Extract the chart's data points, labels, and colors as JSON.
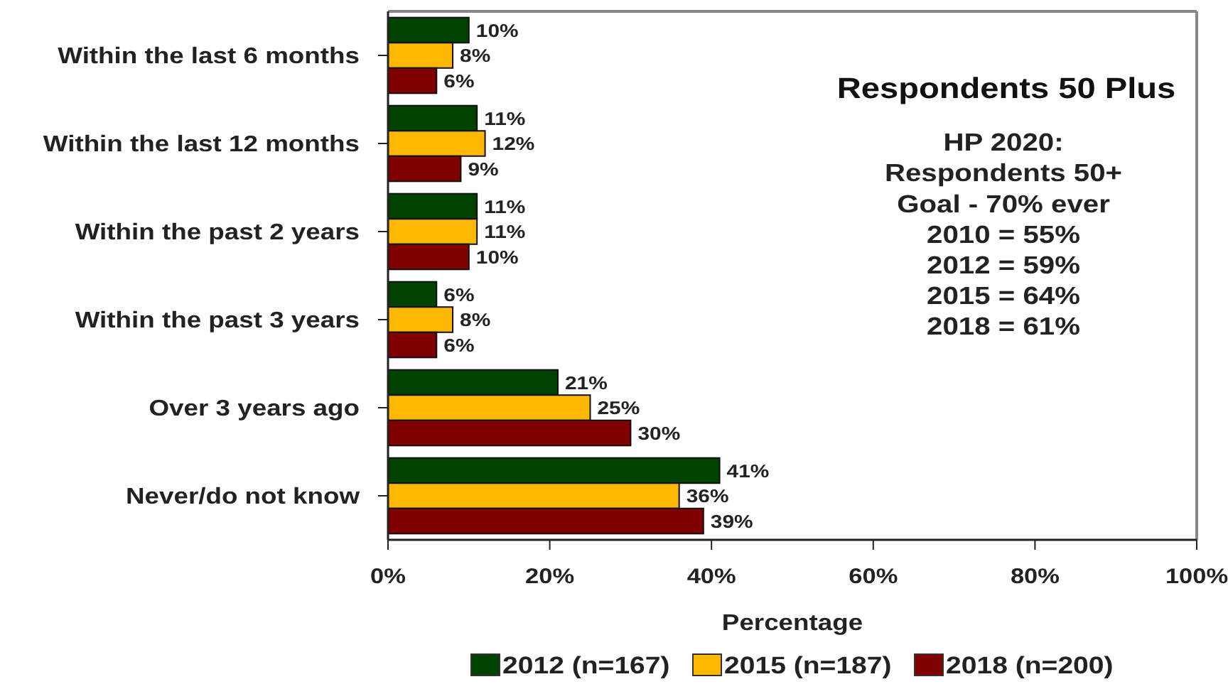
{
  "chart_data": {
    "type": "bar",
    "orientation": "horizontal",
    "title": "Respondents 50 Plus",
    "xlabel": "Percentage",
    "categories": [
      "Within the last 6 months",
      "Within the last 12 months",
      "Within the past 2 years",
      "Within the past 3 years",
      "Over 3 years ago",
      "Never/do not know"
    ],
    "series": [
      {
        "name": "2012 (n=167)",
        "color": "#004200",
        "values": [
          10,
          11,
          11,
          6,
          21,
          41
        ],
        "value_labels": [
          "10%",
          "11%",
          "11%",
          "6%",
          "21%",
          "41%"
        ]
      },
      {
        "name": "2015 (n=187)",
        "color": "#ffb800",
        "values": [
          8,
          12,
          11,
          8,
          25,
          36
        ],
        "value_labels": [
          "8%",
          "12%",
          "11%",
          "8%",
          "25%",
          "36%"
        ]
      },
      {
        "name": "2018 (n=200)",
        "color": "#800000",
        "values": [
          6,
          9,
          10,
          6,
          30,
          39
        ],
        "value_labels": [
          "6%",
          "9%",
          "10%",
          "6%",
          "30%",
          "39%"
        ]
      }
    ],
    "xlim": [
      0,
      100
    ],
    "xticks": [
      {
        "value": 0,
        "label": "0%"
      },
      {
        "value": 20,
        "label": "20%"
      },
      {
        "value": 40,
        "label": "40%"
      },
      {
        "value": 60,
        "label": "60%"
      },
      {
        "value": 80,
        "label": "80%"
      },
      {
        "value": 100,
        "label": "100%"
      }
    ],
    "grid": false,
    "legend": "bottom",
    "annotations": [
      "HP 2020:",
      "Respondents 50+",
      "Goal - 70% ever",
      "2010 = 55%",
      "2012 = 59%",
      "2015 = 64%",
      "2018 = 61%"
    ]
  }
}
